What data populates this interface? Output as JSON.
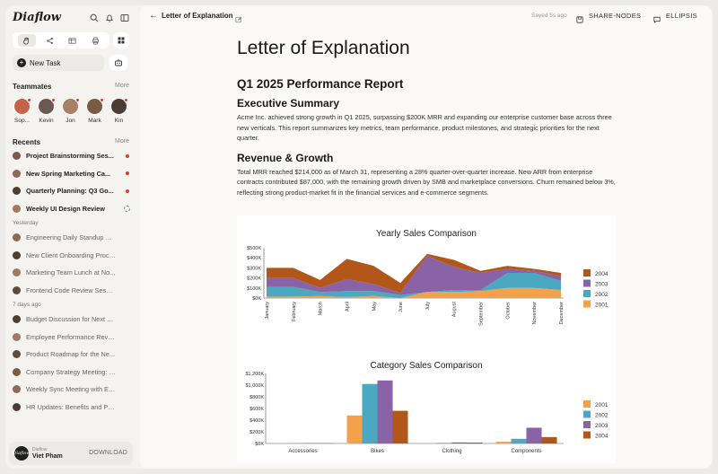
{
  "sidebar": {
    "logo": "Diaflow",
    "new_task": "New Task",
    "teammates_heading": "Teammates",
    "teammates_more": "More",
    "teammates": [
      {
        "name": "Sop...",
        "color": "#c4624a"
      },
      {
        "name": "Kevin",
        "color": "#6a5a54"
      },
      {
        "name": "Jon",
        "color": "#a8806a"
      },
      {
        "name": "Mark",
        "color": "#7a5c46"
      },
      {
        "name": "Kin",
        "color": "#4b3d36"
      }
    ],
    "recent_heading": "Recents",
    "recent_more": "More",
    "recents": [
      {
        "label": "Project Brainstorming Ses...",
        "status": "unread"
      },
      {
        "label": "New Spring Marketing Ca...",
        "status": "unread"
      },
      {
        "label": "Quarterly Planning: Q3 Go...",
        "status": "unread"
      },
      {
        "label": "Weekly UI Design Review",
        "status": "running"
      }
    ],
    "yesterday_heading": "Yesterday",
    "yesterday": [
      "Engineering Daily Standup M...",
      "New Client Onboarding Proce...",
      "Marketing Team Lunch at No...",
      "Frontend Code Review Session"
    ],
    "week_heading": "7 days ago",
    "week": [
      "Budget Discussion for Next Q...",
      "Employee Performance Revie...",
      "Product Roadmap for the Ne...",
      "Company Strategy Meeting: F...",
      "Weekly Sync Meeting with En...",
      "HR Updates: Benefits and Pol..."
    ],
    "user": {
      "brand": "Diaflow",
      "name": "Viet Pham",
      "download": "DOWNLOAD",
      "avatar_text": "Diaflow"
    }
  },
  "topbar": {
    "title": "Letter of Explanation",
    "saved": "Saved 5s ago",
    "share_label": "SHARE-NODES",
    "ellipsis_label": "ELLIPSIS"
  },
  "document": {
    "title": "Letter of Explanation",
    "subtitle": "Q1 2025 Performance Report",
    "sections": [
      {
        "heading": "Executive Summary",
        "body": "Acme Inc. achieved strong growth in Q1 2025, surpassing $200K MRR and expanding our enterprise customer base across three new verticals. This report summarizes key metrics, team performance, product milestones, and strategic priorities for the next quarter."
      },
      {
        "heading": "Revenue & Growth",
        "body": "Total MRR reached $214,000 as of March 31, representing a 28% quarter-over-quarter increase. New ARR from enterprise contracts contributed $87,000, with the remaining growth driven by SMB and marketplace conversions. Churn remained below 3%, reflecting strong product-market fit in the financial services and e-commerce segments."
      }
    ]
  },
  "chart_data": [
    {
      "type": "area",
      "title": "Yearly Sales Comparison",
      "categories": [
        "January",
        "February",
        "March",
        "April",
        "May",
        "June",
        "July",
        "August",
        "September",
        "October",
        "November",
        "December"
      ],
      "ylim": [
        0,
        500000
      ],
      "yticks": [
        "$0K",
        "$100K",
        "$200K",
        "$300K",
        "$400K",
        "$500K"
      ],
      "legend": [
        "2004",
        "2003",
        "2002",
        "2001"
      ],
      "legend_position": "right",
      "stacked": true,
      "series": [
        {
          "name": "2001",
          "color": "#f4a24a",
          "values": [
            15000,
            15000,
            20000,
            10000,
            20000,
            0,
            60000,
            60000,
            70000,
            100000,
            100000,
            80000
          ]
        },
        {
          "name": "2002",
          "color": "#4aa8c0",
          "values": [
            95000,
            95000,
            40000,
            60000,
            50000,
            30000,
            0,
            20000,
            10000,
            150000,
            150000,
            90000
          ]
        },
        {
          "name": "2003",
          "color": "#8a62a6",
          "values": [
            90000,
            90000,
            40000,
            120000,
            70000,
            20000,
            360000,
            230000,
            170000,
            40000,
            20000,
            50000
          ]
        },
        {
          "name": "2004",
          "color": "#b2561a",
          "values": [
            100000,
            100000,
            80000,
            200000,
            180000,
            100000,
            20000,
            70000,
            20000,
            30000,
            20000,
            30000
          ]
        }
      ]
    },
    {
      "type": "bar",
      "title": "Category Sales Comparison",
      "categories": [
        "Accessories",
        "Bikes",
        "Clothing",
        "Components"
      ],
      "ylim": [
        0,
        1200000
      ],
      "yticks": [
        "$0K",
        "$200K",
        "$400K",
        "$600K",
        "$800K",
        "$1,000K",
        "$1,200K"
      ],
      "legend": [
        "2001",
        "2002",
        "2003",
        "2004"
      ],
      "legend_position": "right",
      "series": [
        {
          "name": "2001",
          "color": "#f4a24a",
          "values": [
            3000,
            480000,
            8000,
            30000
          ]
        },
        {
          "name": "2002",
          "color": "#4aa8c0",
          "values": [
            4000,
            1020000,
            10000,
            80000
          ]
        },
        {
          "name": "2003",
          "color": "#8a62a6",
          "values": [
            6000,
            1080000,
            18000,
            270000
          ]
        },
        {
          "name": "2004",
          "color": "#b2561a",
          "values": [
            5000,
            560000,
            15000,
            110000
          ]
        }
      ]
    }
  ]
}
